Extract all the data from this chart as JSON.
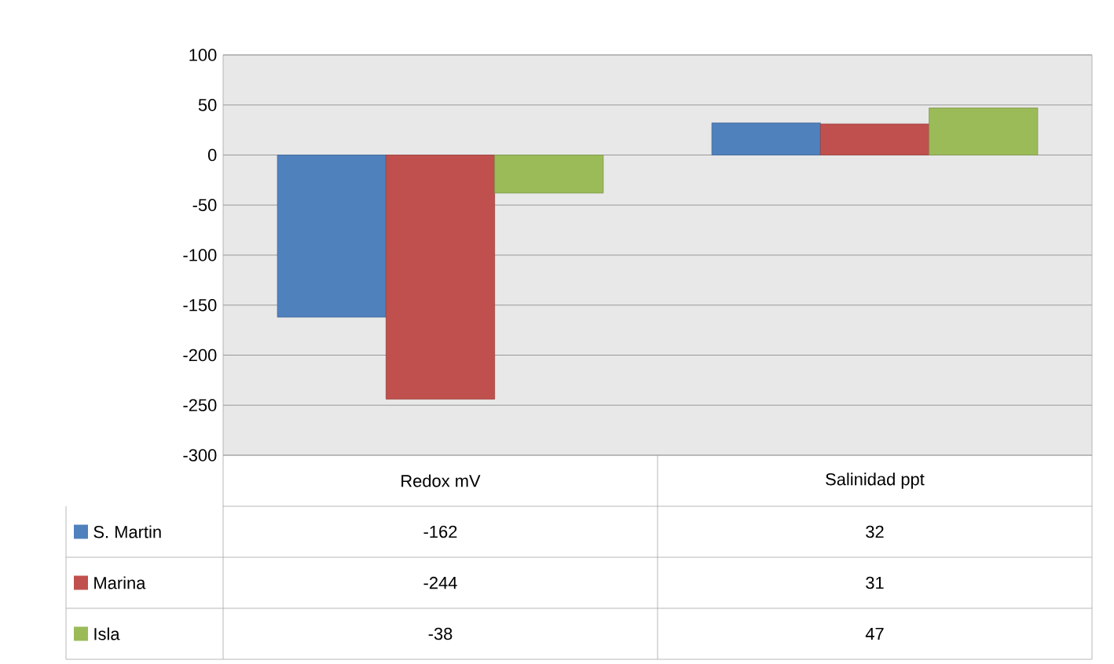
{
  "chart_data": {
    "type": "bar",
    "categories": [
      "Redox mV",
      "Salinidad ppt"
    ],
    "series": [
      {
        "name": "S. Martin",
        "color": "#4f81bd",
        "values": [
          -162,
          32
        ],
        "value_labels": [
          "-162",
          "32"
        ]
      },
      {
        "name": "Marina",
        "color": "#c0504d",
        "values": [
          -244,
          31
        ],
        "value_labels": [
          "-244",
          "31"
        ]
      },
      {
        "name": "Isla",
        "color": "#9bbb59",
        "values": [
          -38,
          47
        ],
        "value_labels": [
          "-38",
          "47"
        ]
      }
    ],
    "ylim": [
      -300,
      100
    ],
    "yticks": [
      -300,
      -250,
      -200,
      -150,
      -100,
      -50,
      0,
      50,
      100
    ],
    "grid": "y",
    "legend": "bottom",
    "tick_labels": "y"
  }
}
